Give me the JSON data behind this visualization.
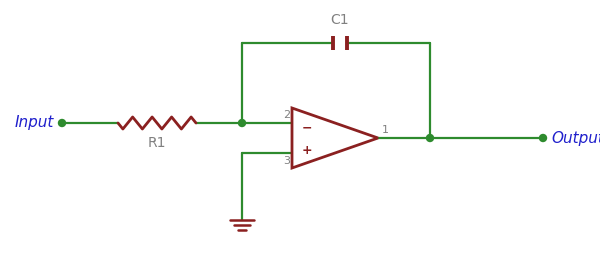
{
  "bg_color": "#ffffff",
  "wire_color": "#2e8b2e",
  "component_color": "#8b2020",
  "label_color": "#2020cc",
  "pin_label_color": "#808080",
  "node_color": "#2e8b2e",
  "input_label": "Input",
  "output_label": "Output",
  "r1_label": "R1",
  "c1_label": "C1",
  "pin1_label": "1",
  "pin2_label": "2",
  "pin3_label": "3",
  "minus_sign": "−",
  "plus_sign": "+",
  "figsize": [
    6.0,
    2.61
  ],
  "dpi": 100
}
